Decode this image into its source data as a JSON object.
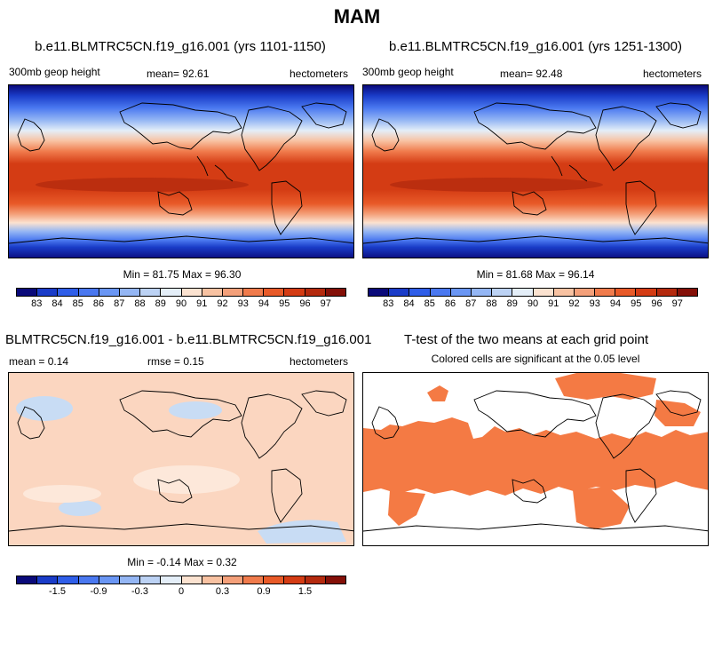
{
  "title": "MAM",
  "panels": [
    {
      "title": "b.e11.BLMTRC5CN.f19_g16.001 (yrs 1101-1150)",
      "left_label": "300mb geop height",
      "center_label": "mean=  92.61",
      "right_label": "hectometers",
      "minmax": "Min =  81.75 Max =  96.30"
    },
    {
      "title": "b.e11.BLMTRC5CN.f19_g16.001 (yrs 1251-1300)",
      "left_label": "300mb geop height",
      "center_label": "mean=  92.48",
      "right_label": "hectometers",
      "minmax": "Min =  81.68 Max =  96.14"
    },
    {
      "title": "BLMTRC5CN.f19_g16.001 - b.e11.BLMTRC5CN.f19_g16.001",
      "left_label": "mean =   0.14",
      "center_label": "rmse =   0.15",
      "right_label": "hectometers",
      "minmax": "Min =  -0.14 Max =   0.32"
    },
    {
      "title": "T-test of the two means at each grid point",
      "subtitle": "Colored cells are significant at the 0.05 level"
    }
  ],
  "colorbar_main": {
    "labels": [
      "83",
      "84",
      "85",
      "86",
      "87",
      "88",
      "89",
      "90",
      "91",
      "92",
      "93",
      "94",
      "95",
      "96",
      "97"
    ],
    "colors": [
      "#0a0a7a",
      "#1a3cc8",
      "#2f5ee8",
      "#4a78f0",
      "#6a96f4",
      "#94b6f4",
      "#bcd2f4",
      "#e4eef8",
      "#fbe2d0",
      "#f8c2a2",
      "#f4a07a",
      "#f07b4c",
      "#e85a28",
      "#d43c14",
      "#b42a0e",
      "#841008"
    ]
  },
  "colorbar_diff": {
    "labels": [
      "-1.5",
      "-0.9",
      "-0.3",
      "0",
      "0.3",
      "0.9",
      "1.5"
    ],
    "colors": [
      "#0a0a7a",
      "#1a3cc8",
      "#2f5ee8",
      "#4a78f0",
      "#6a96f4",
      "#94b6f4",
      "#bcd2f4",
      "#e4eef8",
      "#fbe2d0",
      "#f8c2a2",
      "#f4a07a",
      "#f07b4c",
      "#e85a28",
      "#d43c14",
      "#b42a0e",
      "#841008"
    ]
  },
  "chart_data": [
    {
      "type": "heatmap",
      "title": "b.e11.BLMTRC5CN.f19_g16.001 (yrs 1101-1150)",
      "variable": "300mb geop height",
      "units": "hectometers",
      "mean": 92.61,
      "min": 81.75,
      "max": 96.3,
      "levels": [
        83,
        84,
        85,
        86,
        87,
        88,
        89,
        90,
        91,
        92,
        93,
        94,
        95,
        96,
        97
      ]
    },
    {
      "type": "heatmap",
      "title": "b.e11.BLMTRC5CN.f19_g16.001 (yrs 1251-1300)",
      "variable": "300mb geop height",
      "units": "hectometers",
      "mean": 92.48,
      "min": 81.68,
      "max": 96.14,
      "levels": [
        83,
        84,
        85,
        86,
        87,
        88,
        89,
        90,
        91,
        92,
        93,
        94,
        95,
        96,
        97
      ]
    },
    {
      "type": "heatmap",
      "title": "BLMTRC5CN.f19_g16.001 - b.e11.BLMTRC5CN.f19_g16.001",
      "units": "hectometers",
      "mean": 0.14,
      "rmse": 0.15,
      "min": -0.14,
      "max": 0.32,
      "levels": [
        -1.5,
        -0.9,
        -0.3,
        0,
        0.3,
        0.9,
        1.5
      ]
    },
    {
      "type": "heatmap",
      "title": "T-test of the two means at each grid point",
      "subtitle": "Colored cells are significant at the 0.05 level",
      "significance_level": 0.05
    }
  ]
}
